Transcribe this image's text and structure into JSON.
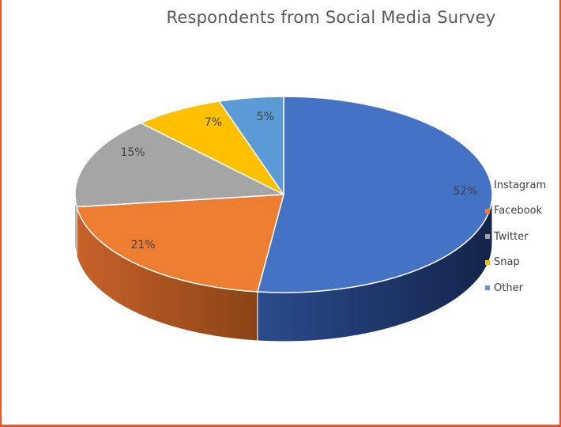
{
  "chart_data": {
    "type": "pie",
    "title": "Respondents from Social Media Survey",
    "style": "3d",
    "slices": [
      {
        "label": "Instagram",
        "value": 52,
        "data_label": "52%",
        "color": "#4472c4",
        "side_color": "#1f3864"
      },
      {
        "label": "Facebook",
        "value": 21,
        "data_label": "21%",
        "color": "#ed7d31",
        "side_color": "#a04c16"
      },
      {
        "label": "Twitter",
        "value": 15,
        "data_label": "15%",
        "color": "#a5a5a5",
        "side_color": "#6e6e6e"
      },
      {
        "label": "Snap",
        "value": 7,
        "data_label": "7%",
        "color": "#ffc000",
        "side_color": "#b38600"
      },
      {
        "label": "Other",
        "value": 5,
        "data_label": "5%",
        "color": "#5b9bd5",
        "side_color": "#2e5f8a"
      }
    ],
    "legend_position": "right"
  }
}
